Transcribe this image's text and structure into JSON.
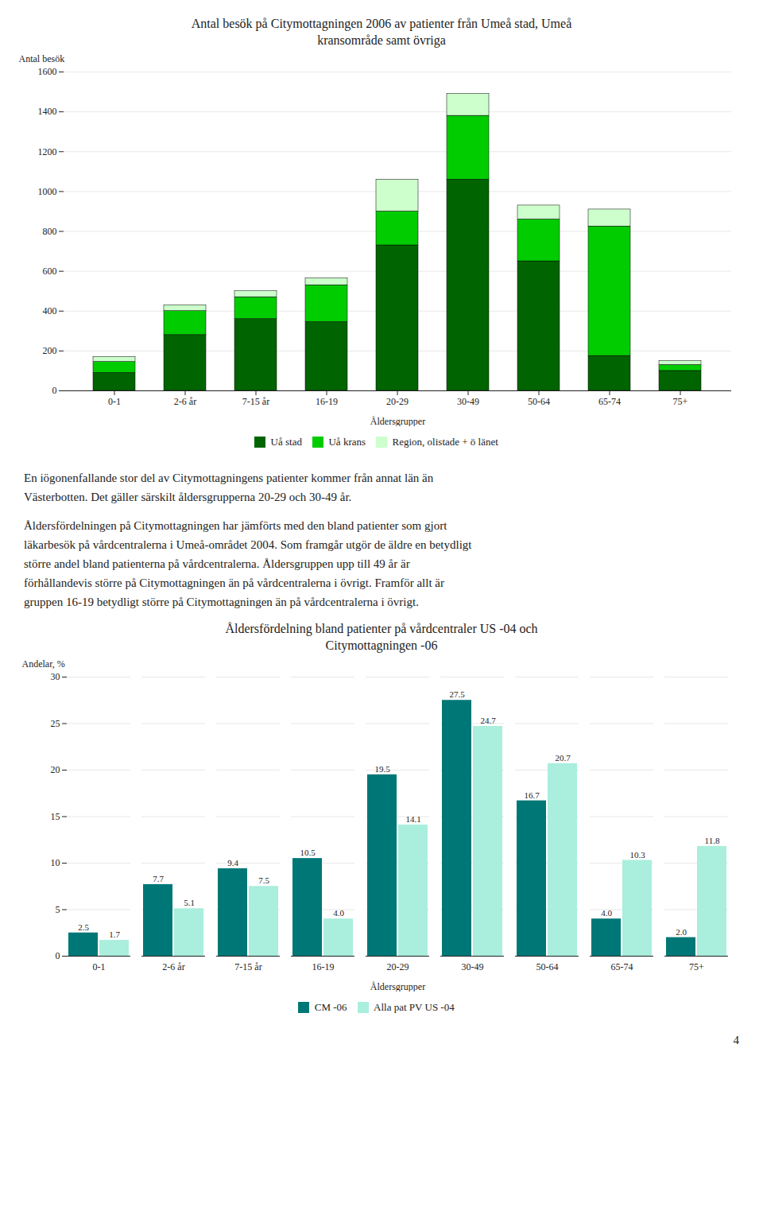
{
  "chart_data": [
    {
      "type": "bar",
      "title": "Antal besök på Citymottagningen 2006 av patienter från Umeå stad, Umeå\nkransområde samt övriga",
      "categories": [
        "0-1",
        "2-6 år",
        "7-15 år",
        "16-19",
        "20-29",
        "30-49",
        "50-64",
        "65-74",
        "75+"
      ],
      "series": [
        {
          "name": "Uå stad",
          "color": "#006400",
          "values": [
            90,
            280,
            360,
            345,
            730,
            1060,
            650,
            175,
            100
          ]
        },
        {
          "name": "Uå krans",
          "color": "#00cc00",
          "values": [
            55,
            120,
            110,
            185,
            170,
            320,
            210,
            650,
            30
          ]
        },
        {
          "name": "Region, olistade + ö länet",
          "color": "#ccffcc",
          "values": [
            25,
            30,
            30,
            35,
            160,
            110,
            70,
            85,
            20
          ]
        }
      ],
      "ylabel": "Antal besök",
      "xlabel": "Åldersgrupper",
      "ylim": [
        0,
        1600
      ],
      "yticks": [
        0,
        200,
        400,
        600,
        800,
        1000,
        1200,
        1400,
        1600
      ],
      "stacked": true,
      "grid": true,
      "legend": "bottom",
      "annotations": [
        "En iögonenfallande stor del av Citymottagningens patienter kommer från annat län än\nVästerbotten. Det gäller särskilt åldersgrupperna 20-29 och 30-49 år.",
        "Åldersfördelningen på Citymottagningen har jämförts med den bland patienter som gjort\nläkarbesök på vårdcentralerna i Umeå-området 2004. Som framgår utgör de äldre en betydligt\nstörre andel bland patienterna på vårdcentralerna. Åldersgruppen upp till 49 år är\nförhållandevis större på Citymottagningen än på vårdcentralerna i övrigt. Framför allt är\ngruppen 16-19 betydligt större på Citymottagningen än på vårdcentralerna i övrigt."
      ]
    },
    {
      "type": "bar",
      "title": "Åldersfördelning bland patienter på vårdcentraler US -04 och\nCitymottagningen -06",
      "categories": [
        "0-1",
        "2-6 år",
        "7-15 år",
        "16-19",
        "20-29",
        "30-49",
        "50-64",
        "65-74",
        "75+"
      ],
      "series": [
        {
          "name": "CM -06",
          "color": "#007777",
          "values": [
            2.5,
            7.7,
            9.4,
            10.5,
            19.5,
            27.5,
            16.7,
            4.0,
            2.0
          ],
          "value_labels": [
            "2.5",
            "7.7",
            "9.4",
            "10.5",
            "19.5",
            "27.5",
            "16.7",
            "4.0",
            "2.0"
          ]
        },
        {
          "name": "Alla pat PV US -04",
          "color": "#aaeedd",
          "values": [
            1.7,
            5.1,
            7.5,
            4.0,
            14.1,
            24.7,
            20.7,
            10.3,
            11.8
          ],
          "value_labels": [
            "1.7",
            "5.1",
            "7.5",
            "4.0",
            "14.1",
            "24.7",
            "20.7",
            "10.3",
            "11.8"
          ]
        }
      ],
      "ylabel": "Andelar, %",
      "xlabel": "Åldersgrupper",
      "ylim": [
        0,
        30
      ],
      "yticks": [
        0,
        5,
        10,
        15,
        20,
        25,
        30
      ],
      "stacked": false,
      "grid": true,
      "legend": "bottom",
      "data_labels": true,
      "annotations": [
        "4"
      ]
    }
  ]
}
